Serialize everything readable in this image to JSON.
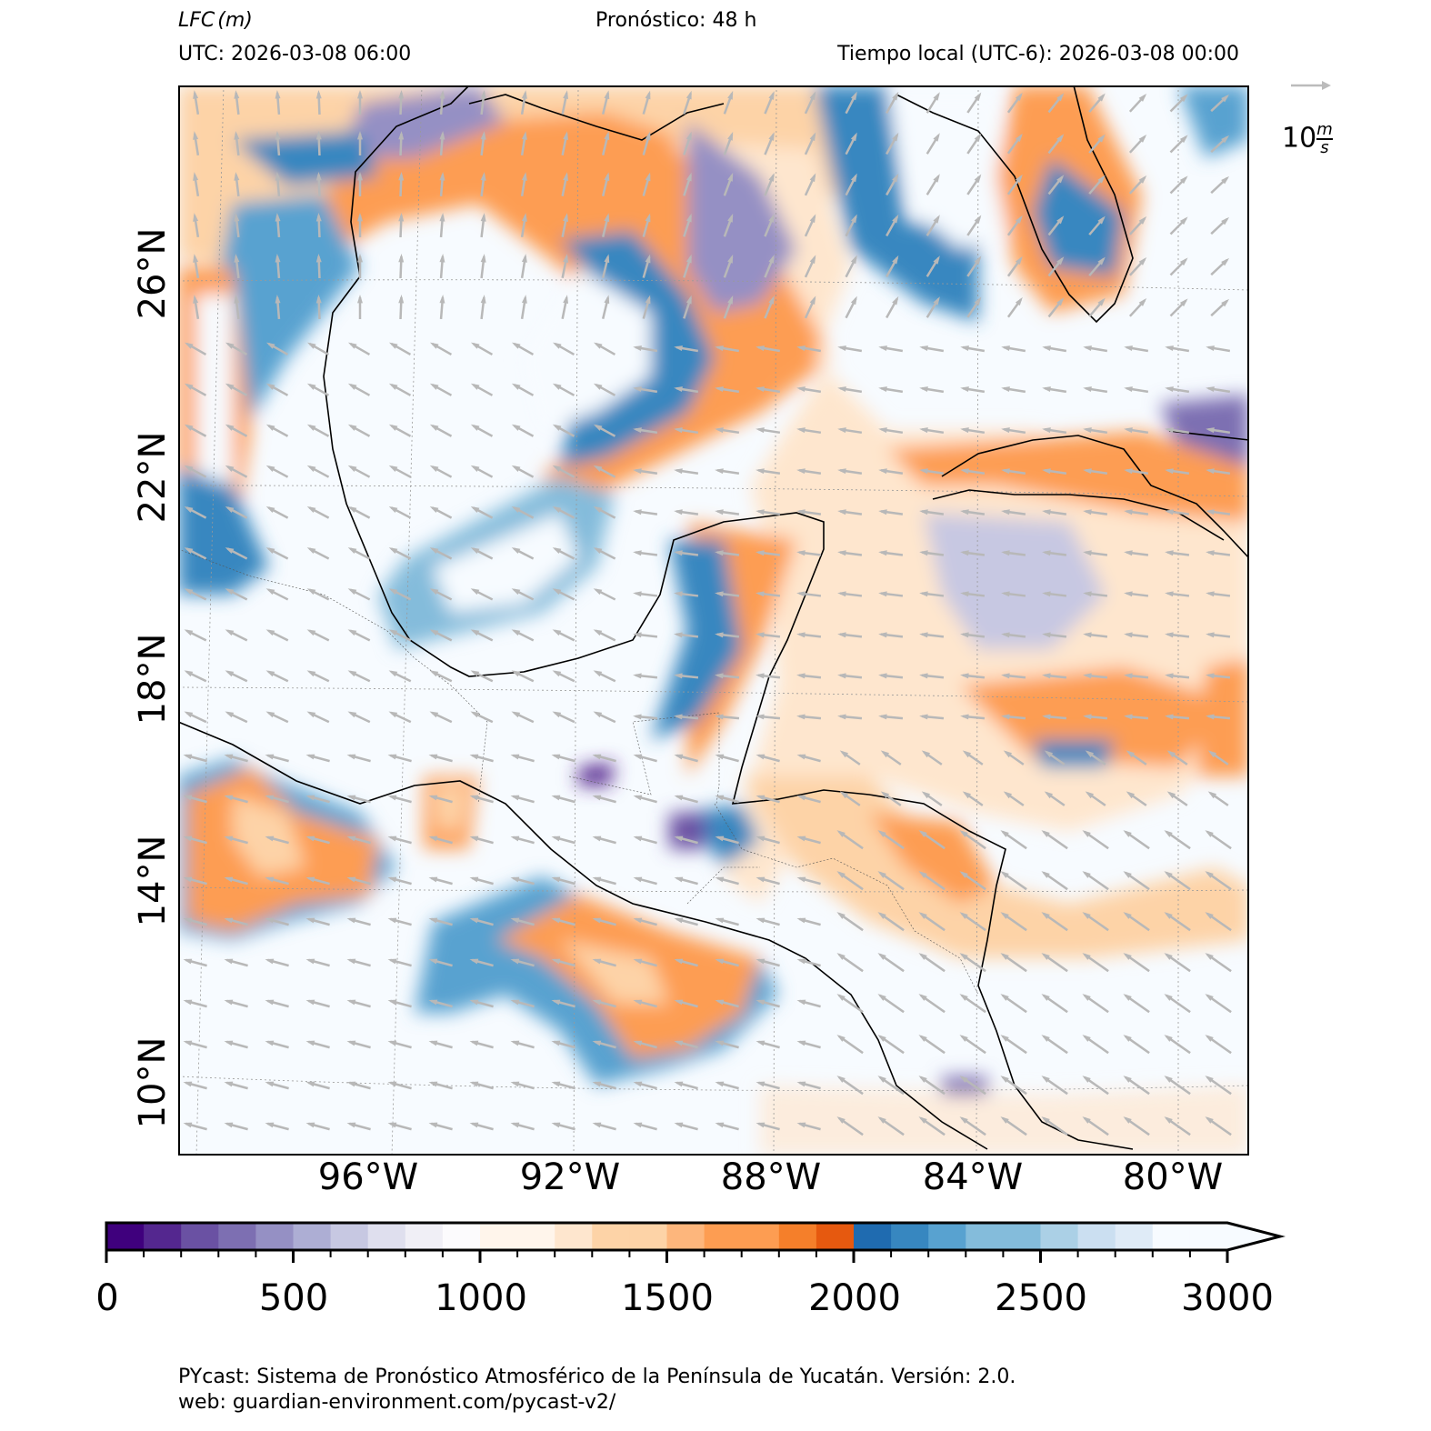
{
  "header": {
    "variable": "LFC",
    "unit": "(m)",
    "forecast": "Pronóstico: 48 h",
    "utc": "UTC:  2026-03-08 06:00",
    "local": "Tiempo local (UTC-6): 2026-03-08 00:00"
  },
  "wind_legend": {
    "value": "10",
    "unit_num": "m",
    "unit_den": "s"
  },
  "lat_labels": [
    "26°N",
    "22°N",
    "18°N",
    "14°N",
    "10°N"
  ],
  "lon_labels": [
    "96°W",
    "92°W",
    "88°W",
    "84°W",
    "80°W"
  ],
  "colorbar": {
    "ticks": [
      "0",
      "500",
      "1000",
      "1500",
      "2000",
      "2500",
      "3000"
    ],
    "extend": "max",
    "colors": [
      "#3f007d",
      "#54278f",
      "#6a51a3",
      "#7d6fb2",
      "#9590c4",
      "#adaed4",
      "#c7c8e2",
      "#dfdfee",
      "#f0eff6",
      "#fcfbfd",
      "#fff5eb",
      "#fff5eb",
      "#fee6ce",
      "#fdd3a7",
      "#fdd3a7",
      "#fdb67c",
      "#fd9d52",
      "#fd9d52",
      "#f57f2a",
      "#e6590f",
      "#1f6bb0",
      "#3787c0",
      "#58a2d0",
      "#84bcdb",
      "#84bcdb",
      "#abd0e6",
      "#cbdff1",
      "#dfebf7",
      "#f7fbff",
      "#f7fbff"
    ]
  },
  "footer": {
    "line1": "PYcast: Sistema de Pronóstico Atmosférico de la Península de Yucatán. Versión: 2.0.",
    "line2": "web: guardian-environment.com/pycast-v2/"
  }
}
